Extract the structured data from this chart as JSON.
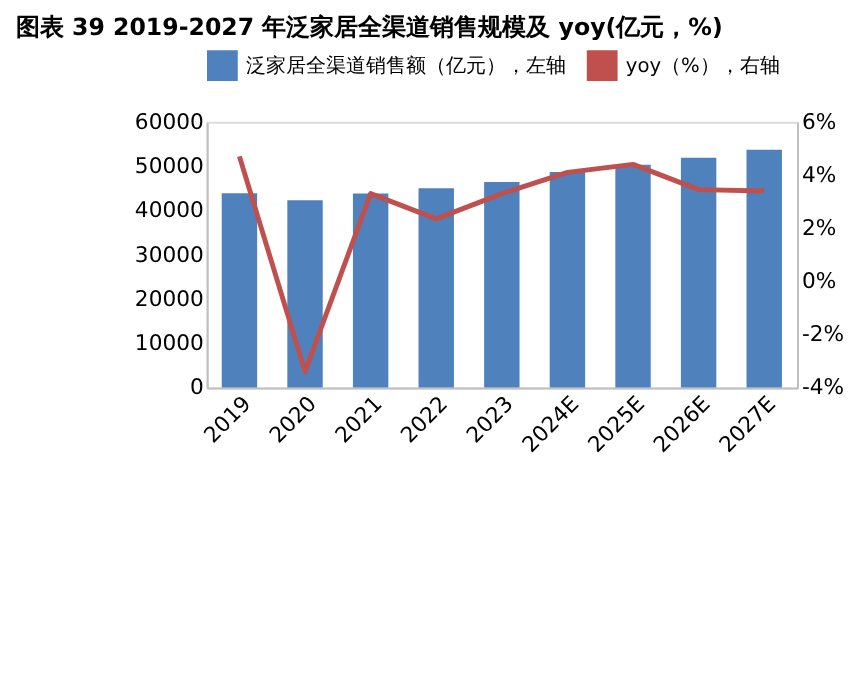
{
  "chart_data": {
    "type": "bar",
    "title": "图表 39 2019-2027 年泛家居全渠道销售规模及 yoy(亿元，%)",
    "categories": [
      "2019",
      "2020",
      "2021",
      "2022",
      "2023",
      "2024E",
      "2025E",
      "2026E",
      "2027E"
    ],
    "series": [
      {
        "name": "泛家居全渠道销售额（亿元），左轴",
        "color": "#4f81bd",
        "values": [
          43900,
          42300,
          43800,
          45000,
          46400,
          48700,
          50300,
          51900,
          53700
        ]
      },
      {
        "name": "yoy（%），右轴",
        "type": "line",
        "axis": "y2",
        "color": "#c0504d",
        "values": [
          4.7,
          -3.4,
          3.3,
          2.35,
          3.3,
          4.1,
          4.4,
          3.45,
          3.4
        ]
      }
    ],
    "ylim": [
      0,
      60000
    ],
    "yticks": [
      0,
      10000,
      20000,
      30000,
      40000,
      50000,
      60000
    ],
    "y2lim": [
      -4,
      6
    ],
    "y2ticks": [
      {
        "value": -4,
        "label": "-4%"
      },
      {
        "value": -2,
        "label": "-2%"
      },
      {
        "value": 0,
        "label": "0%"
      },
      {
        "value": 2,
        "label": "2%"
      },
      {
        "value": 4,
        "label": "4%"
      },
      {
        "value": 6,
        "label": "6%"
      }
    ],
    "legend": "top",
    "grid": false
  }
}
